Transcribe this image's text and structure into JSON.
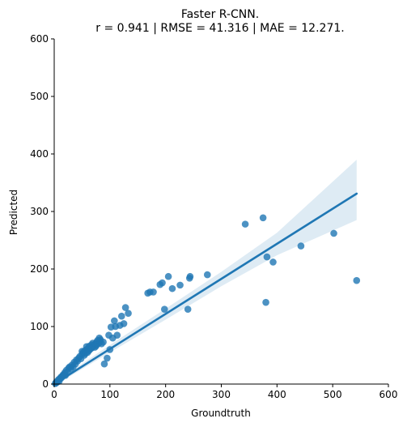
{
  "chart_data": {
    "type": "scatter",
    "title": "Faster R-CNN.",
    "subtitle": "r = 0.941 | RMSE = 41.316 | MAE = 12.271.",
    "xlabel": "Groundtruth",
    "ylabel": "Predicted",
    "xlim": [
      0,
      600
    ],
    "ylim": [
      0,
      600
    ],
    "xticks": [
      0,
      100,
      200,
      300,
      400,
      500,
      600
    ],
    "yticks": [
      0,
      100,
      200,
      300,
      400,
      500,
      600
    ],
    "grid": false,
    "point_color": "#1f77b4",
    "regression_line": {
      "x": [
        0,
        543
      ],
      "y": [
        0,
        331
      ]
    },
    "confidence_band": {
      "x": [
        0,
        100,
        200,
        300,
        400,
        543
      ],
      "upper": [
        3,
        68,
        131,
        195,
        263,
        390
      ],
      "lower": [
        -3,
        55,
        112,
        170,
        224,
        285
      ]
    },
    "points": [
      [
        2,
        1
      ],
      [
        3,
        2
      ],
      [
        4,
        4
      ],
      [
        5,
        3
      ],
      [
        6,
        5
      ],
      [
        7,
        6
      ],
      [
        8,
        8
      ],
      [
        9,
        5
      ],
      [
        10,
        9
      ],
      [
        11,
        10
      ],
      [
        12,
        12
      ],
      [
        13,
        11
      ],
      [
        14,
        13
      ],
      [
        15,
        14
      ],
      [
        16,
        16
      ],
      [
        17,
        15
      ],
      [
        18,
        17
      ],
      [
        19,
        20
      ],
      [
        20,
        15
      ],
      [
        22,
        24
      ],
      [
        24,
        21
      ],
      [
        26,
        28
      ],
      [
        28,
        30
      ],
      [
        30,
        27
      ],
      [
        32,
        33
      ],
      [
        34,
        30
      ],
      [
        36,
        38
      ],
      [
        38,
        35
      ],
      [
        40,
        42
      ],
      [
        42,
        40
      ],
      [
        44,
        45
      ],
      [
        46,
        48
      ],
      [
        48,
        44
      ],
      [
        50,
        52
      ],
      [
        50,
        57
      ],
      [
        52,
        55
      ],
      [
        54,
        50
      ],
      [
        55,
        58
      ],
      [
        56,
        53
      ],
      [
        58,
        60
      ],
      [
        58,
        65
      ],
      [
        60,
        55
      ],
      [
        61,
        62
      ],
      [
        62,
        58
      ],
      [
        63,
        66
      ],
      [
        64,
        60
      ],
      [
        65,
        64
      ],
      [
        66,
        62
      ],
      [
        67,
        68
      ],
      [
        68,
        63
      ],
      [
        69,
        71
      ],
      [
        70,
        66
      ],
      [
        72,
        68
      ],
      [
        73,
        64
      ],
      [
        74,
        70
      ],
      [
        75,
        66
      ],
      [
        76,
        73
      ],
      [
        77,
        69
      ],
      [
        78,
        76
      ],
      [
        80,
        71
      ],
      [
        81,
        80
      ],
      [
        82,
        74
      ],
      [
        83,
        77
      ],
      [
        85,
        70
      ],
      [
        88,
        73
      ],
      [
        90,
        35
      ],
      [
        95,
        45
      ],
      [
        98,
        85
      ],
      [
        100,
        60
      ],
      [
        102,
        99
      ],
      [
        105,
        80
      ],
      [
        108,
        110
      ],
      [
        110,
        100
      ],
      [
        113,
        85
      ],
      [
        118,
        102
      ],
      [
        121,
        118
      ],
      [
        125,
        105
      ],
      [
        128,
        133
      ],
      [
        133,
        123
      ],
      [
        168,
        158
      ],
      [
        172,
        160
      ],
      [
        178,
        160
      ],
      [
        190,
        173
      ],
      [
        194,
        176
      ],
      [
        198,
        130
      ],
      [
        205,
        187
      ],
      [
        212,
        166
      ],
      [
        226,
        172
      ],
      [
        240,
        130
      ],
      [
        243,
        184
      ],
      [
        244,
        187
      ],
      [
        275,
        190
      ],
      [
        343,
        278
      ],
      [
        375,
        289
      ],
      [
        380,
        142
      ],
      [
        382,
        221
      ],
      [
        393,
        212
      ],
      [
        443,
        240
      ],
      [
        502,
        262
      ],
      [
        543,
        180
      ]
    ]
  }
}
